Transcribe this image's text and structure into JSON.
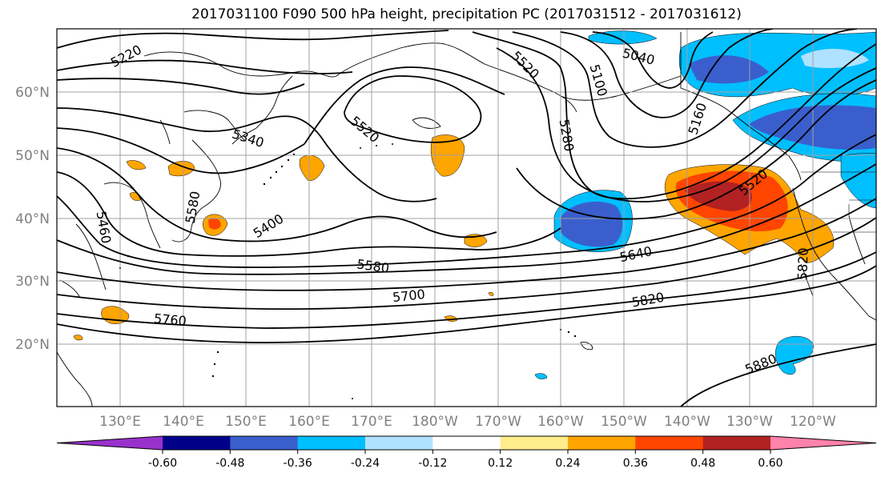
{
  "title": "2017031100 F090 500 hPa height, precipitation PC (2017031512 - 2017031612)",
  "map": {
    "lat_labels": [
      "60°N",
      "50°N",
      "40°N",
      "30°N",
      "20°N"
    ],
    "lon_labels": [
      "130°E",
      "140°E",
      "150°E",
      "160°E",
      "170°E",
      "180°W",
      "170°W",
      "160°W",
      "150°W",
      "140°W",
      "130°W",
      "120°W"
    ],
    "contour_labels": [
      "5220",
      "5340",
      "5520",
      "5520",
      "5040",
      "5100",
      "5280",
      "5160",
      "5520",
      "5460",
      "5580",
      "5400",
      "5580",
      "5640",
      "5700",
      "5760",
      "5820",
      "5820",
      "5880"
    ]
  },
  "colorbar": {
    "colors": [
      "#9932CC",
      "#00008B",
      "#3A5FCD",
      "#00BFFF",
      "#B0E2FF",
      "#FFFFFF",
      "#FFEC8B",
      "#FFA500",
      "#FF4500",
      "#B22222",
      "#FF82AB"
    ],
    "tick_labels": [
      "-0.60",
      "-0.48",
      "-0.36",
      "-0.24",
      "-0.12",
      "0.12",
      "0.24",
      "0.36",
      "0.48",
      "0.60"
    ]
  }
}
